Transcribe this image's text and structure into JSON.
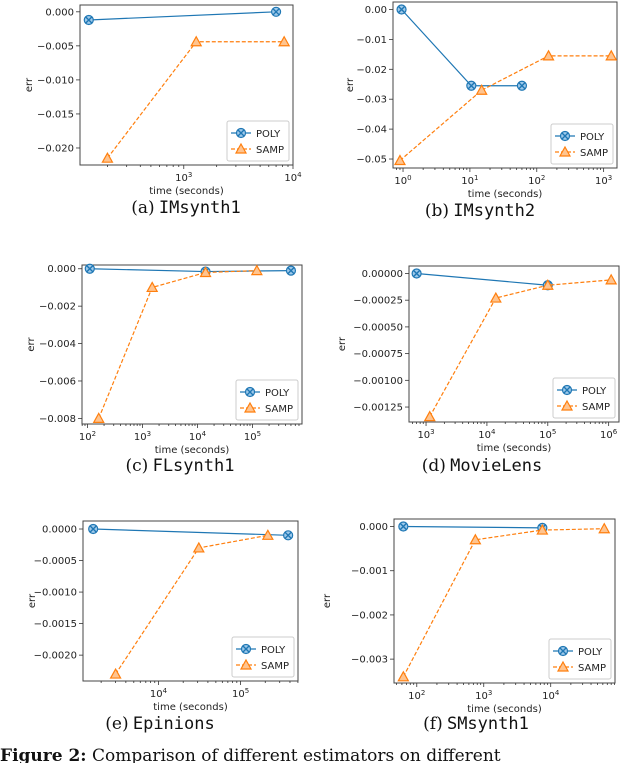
{
  "colors": {
    "poly": "#1f77b4",
    "samp": "#ff7f0e"
  },
  "figure_caption": {
    "label": "Figure 2:",
    "text": "Comparison of different estimators on different"
  },
  "chart_data": [
    {
      "type": "line",
      "letter": "(a)",
      "title": "IMsynth1",
      "xlabel": "time (seconds)",
      "ylabel": "err",
      "xscale": "log",
      "xlim_log10": [
        2.05,
        4.0
      ],
      "ylim": [
        -0.0225,
        0.001
      ],
      "xticks": [
        3,
        4
      ],
      "yticks": [
        {
          "v": 0,
          "t": "0.000"
        },
        {
          "v": -0.005,
          "t": "−0.005"
        },
        {
          "v": -0.01,
          "t": "−0.010"
        },
        {
          "v": -0.015,
          "t": "−0.015"
        },
        {
          "v": -0.02,
          "t": "−0.020"
        }
      ],
      "legend": "lower-right",
      "series": [
        {
          "name": "POLY",
          "x": [
            135,
            7000
          ],
          "y": [
            -0.0012,
            0
          ]
        },
        {
          "name": "SAMP",
          "x": [
            200,
            1300,
            8300
          ],
          "y": [
            -0.0215,
            -0.0044,
            -0.0044
          ]
        }
      ]
    },
    {
      "type": "line",
      "letter": "(b)",
      "title": "IMsynth2",
      "xlabel": "time (seconds)",
      "ylabel": "err",
      "xscale": "log",
      "xlim_log10": [
        -0.15,
        3.2
      ],
      "ylim": [
        -0.053,
        0.0025
      ],
      "xticks": [
        0,
        1,
        2,
        3
      ],
      "yticks": [
        {
          "v": 0,
          "t": "0.00"
        },
        {
          "v": -0.01,
          "t": "−0.01"
        },
        {
          "v": -0.02,
          "t": "−0.02"
        },
        {
          "v": -0.03,
          "t": "−0.03"
        },
        {
          "v": -0.04,
          "t": "−0.04"
        },
        {
          "v": -0.05,
          "t": "−0.05"
        }
      ],
      "legend": "lower-right",
      "series": [
        {
          "name": "POLY",
          "x": [
            0.95,
            10.5,
            60
          ],
          "y": [
            0,
            -0.0255,
            -0.0255
          ]
        },
        {
          "name": "SAMP",
          "x": [
            0.9,
            15,
            150,
            1300
          ],
          "y": [
            -0.0505,
            -0.027,
            -0.0155,
            -0.0155
          ]
        }
      ]
    },
    {
      "type": "line",
      "letter": "(c)",
      "title": "FLsynth1",
      "xlabel": "time (seconds)",
      "ylabel": "err",
      "xscale": "log",
      "xlim_log10": [
        1.9,
        5.9
      ],
      "ylim": [
        -0.0083,
        0.0002
      ],
      "xticks": [
        2,
        3,
        4,
        5
      ],
      "yticks": [
        {
          "v": 0,
          "t": "0.000"
        },
        {
          "v": -0.002,
          "t": "−0.002"
        },
        {
          "v": -0.004,
          "t": "−0.004"
        },
        {
          "v": -0.006,
          "t": "−0.006"
        },
        {
          "v": -0.008,
          "t": "−0.008"
        }
      ],
      "legend": "lower-right",
      "series": [
        {
          "name": "POLY",
          "x": [
            110,
            14000,
            500000
          ],
          "y": [
            0,
            -0.00015,
            -0.0001
          ]
        },
        {
          "name": "SAMP",
          "x": [
            160,
            1500,
            14000,
            120000
          ],
          "y": [
            -0.008,
            -0.001,
            -0.0002,
            -0.0001
          ]
        }
      ]
    },
    {
      "type": "line",
      "letter": "(d)",
      "title": "MovieLens",
      "xlabel": "time (seconds)",
      "ylabel": "err",
      "xscale": "log",
      "xlim_log10": [
        2.72,
        6.17
      ],
      "ylim": [
        -0.00139,
        7e-05
      ],
      "xticks": [
        3,
        4,
        5,
        6
      ],
      "yticks": [
        {
          "v": 0,
          "t": "0.00000"
        },
        {
          "v": -0.00025,
          "t": "−0.00025"
        },
        {
          "v": -0.0005,
          "t": "−0.00050"
        },
        {
          "v": -0.00075,
          "t": "−0.00075"
        },
        {
          "v": -0.001,
          "t": "−0.00100"
        },
        {
          "v": -0.00125,
          "t": "−0.00125"
        }
      ],
      "legend": "lower-right",
      "series": [
        {
          "name": "POLY",
          "x": [
            700,
            100000
          ],
          "y": [
            0,
            -0.00011
          ]
        },
        {
          "name": "SAMP",
          "x": [
            1150,
            14000,
            100000,
            1100000
          ],
          "y": [
            -0.00134,
            -0.00023,
            -0.00011,
            -6e-05
          ]
        }
      ]
    },
    {
      "type": "line",
      "letter": "(e)",
      "title": "Epinions",
      "xlabel": "time (seconds)",
      "ylabel": "err",
      "xscale": "log",
      "xlim_log10": [
        3.08,
        5.7
      ],
      "ylim": [
        -0.00241,
        0.000127
      ],
      "xticks": [
        4,
        5
      ],
      "yticks": [
        {
          "v": 0,
          "t": "0.0000"
        },
        {
          "v": -0.0005,
          "t": "−0.0005"
        },
        {
          "v": -0.001,
          "t": "−0.0010"
        },
        {
          "v": -0.0015,
          "t": "−0.0015"
        },
        {
          "v": -0.002,
          "t": "−0.0020"
        }
      ],
      "legend": "lower-right",
      "series": [
        {
          "name": "POLY",
          "x": [
            1600,
            380000
          ],
          "y": [
            0,
            -0.0001
          ]
        },
        {
          "name": "SAMP",
          "x": [
            3000,
            31000,
            215000
          ],
          "y": [
            -0.0023,
            -0.0003,
            -0.0001
          ]
        }
      ]
    },
    {
      "type": "line",
      "letter": "(f)",
      "title": "SMsynth1",
      "xlabel": "time (seconds)",
      "ylabel": "err",
      "xscale": "log",
      "xlim_log10": [
        1.66,
        4.96
      ],
      "ylim": [
        -0.00354,
        0.00017
      ],
      "xticks": [
        2,
        3,
        4
      ],
      "yticks": [
        {
          "v": 0,
          "t": "0.000"
        },
        {
          "v": -0.001,
          "t": "−0.001"
        },
        {
          "v": -0.002,
          "t": "−0.002"
        },
        {
          "v": -0.003,
          "t": "−0.003"
        }
      ],
      "legend": "lower-right",
      "series": [
        {
          "name": "POLY",
          "x": [
            63,
            7500
          ],
          "y": [
            0,
            -3e-05
          ]
        },
        {
          "name": "SAMP",
          "x": [
            63,
            750,
            7500,
            63000
          ],
          "y": [
            -0.0034,
            -0.0003,
            -8e-05,
            -5e-05
          ]
        }
      ]
    }
  ]
}
